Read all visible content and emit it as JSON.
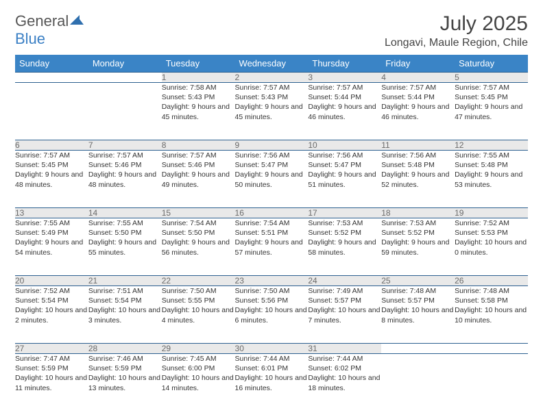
{
  "brand": {
    "part1": "General",
    "part2": "Blue"
  },
  "title": "July 2025",
  "location": "Longavi, Maule Region, Chile",
  "colors": {
    "header_bg": "#3a84c6",
    "header_text": "#ffffff",
    "daynum_bg": "#e9e9e9",
    "daynum_text": "#6a6a6a",
    "rule": "#2b5f8f",
    "body_text": "#333333",
    "brand_grey": "#555555",
    "brand_blue": "#3a7fc4"
  },
  "day_headers": [
    "Sunday",
    "Monday",
    "Tuesday",
    "Wednesday",
    "Thursday",
    "Friday",
    "Saturday"
  ],
  "weeks": [
    [
      null,
      null,
      {
        "n": "1",
        "sr": "7:58 AM",
        "ss": "5:43 PM",
        "dl": "9 hours and 45 minutes."
      },
      {
        "n": "2",
        "sr": "7:57 AM",
        "ss": "5:43 PM",
        "dl": "9 hours and 45 minutes."
      },
      {
        "n": "3",
        "sr": "7:57 AM",
        "ss": "5:44 PM",
        "dl": "9 hours and 46 minutes."
      },
      {
        "n": "4",
        "sr": "7:57 AM",
        "ss": "5:44 PM",
        "dl": "9 hours and 46 minutes."
      },
      {
        "n": "5",
        "sr": "7:57 AM",
        "ss": "5:45 PM",
        "dl": "9 hours and 47 minutes."
      }
    ],
    [
      {
        "n": "6",
        "sr": "7:57 AM",
        "ss": "5:45 PM",
        "dl": "9 hours and 48 minutes."
      },
      {
        "n": "7",
        "sr": "7:57 AM",
        "ss": "5:46 PM",
        "dl": "9 hours and 48 minutes."
      },
      {
        "n": "8",
        "sr": "7:57 AM",
        "ss": "5:46 PM",
        "dl": "9 hours and 49 minutes."
      },
      {
        "n": "9",
        "sr": "7:56 AM",
        "ss": "5:47 PM",
        "dl": "9 hours and 50 minutes."
      },
      {
        "n": "10",
        "sr": "7:56 AM",
        "ss": "5:47 PM",
        "dl": "9 hours and 51 minutes."
      },
      {
        "n": "11",
        "sr": "7:56 AM",
        "ss": "5:48 PM",
        "dl": "9 hours and 52 minutes."
      },
      {
        "n": "12",
        "sr": "7:55 AM",
        "ss": "5:48 PM",
        "dl": "9 hours and 53 minutes."
      }
    ],
    [
      {
        "n": "13",
        "sr": "7:55 AM",
        "ss": "5:49 PM",
        "dl": "9 hours and 54 minutes."
      },
      {
        "n": "14",
        "sr": "7:55 AM",
        "ss": "5:50 PM",
        "dl": "9 hours and 55 minutes."
      },
      {
        "n": "15",
        "sr": "7:54 AM",
        "ss": "5:50 PM",
        "dl": "9 hours and 56 minutes."
      },
      {
        "n": "16",
        "sr": "7:54 AM",
        "ss": "5:51 PM",
        "dl": "9 hours and 57 minutes."
      },
      {
        "n": "17",
        "sr": "7:53 AM",
        "ss": "5:52 PM",
        "dl": "9 hours and 58 minutes."
      },
      {
        "n": "18",
        "sr": "7:53 AM",
        "ss": "5:52 PM",
        "dl": "9 hours and 59 minutes."
      },
      {
        "n": "19",
        "sr": "7:52 AM",
        "ss": "5:53 PM",
        "dl": "10 hours and 0 minutes."
      }
    ],
    [
      {
        "n": "20",
        "sr": "7:52 AM",
        "ss": "5:54 PM",
        "dl": "10 hours and 2 minutes."
      },
      {
        "n": "21",
        "sr": "7:51 AM",
        "ss": "5:54 PM",
        "dl": "10 hours and 3 minutes."
      },
      {
        "n": "22",
        "sr": "7:50 AM",
        "ss": "5:55 PM",
        "dl": "10 hours and 4 minutes."
      },
      {
        "n": "23",
        "sr": "7:50 AM",
        "ss": "5:56 PM",
        "dl": "10 hours and 6 minutes."
      },
      {
        "n": "24",
        "sr": "7:49 AM",
        "ss": "5:57 PM",
        "dl": "10 hours and 7 minutes."
      },
      {
        "n": "25",
        "sr": "7:48 AM",
        "ss": "5:57 PM",
        "dl": "10 hours and 8 minutes."
      },
      {
        "n": "26",
        "sr": "7:48 AM",
        "ss": "5:58 PM",
        "dl": "10 hours and 10 minutes."
      }
    ],
    [
      {
        "n": "27",
        "sr": "7:47 AM",
        "ss": "5:59 PM",
        "dl": "10 hours and 11 minutes."
      },
      {
        "n": "28",
        "sr": "7:46 AM",
        "ss": "5:59 PM",
        "dl": "10 hours and 13 minutes."
      },
      {
        "n": "29",
        "sr": "7:45 AM",
        "ss": "6:00 PM",
        "dl": "10 hours and 14 minutes."
      },
      {
        "n": "30",
        "sr": "7:44 AM",
        "ss": "6:01 PM",
        "dl": "10 hours and 16 minutes."
      },
      {
        "n": "31",
        "sr": "7:44 AM",
        "ss": "6:02 PM",
        "dl": "10 hours and 18 minutes."
      },
      null,
      null
    ]
  ],
  "labels": {
    "sunrise": "Sunrise: ",
    "sunset": "Sunset: ",
    "daylight": "Daylight: "
  }
}
